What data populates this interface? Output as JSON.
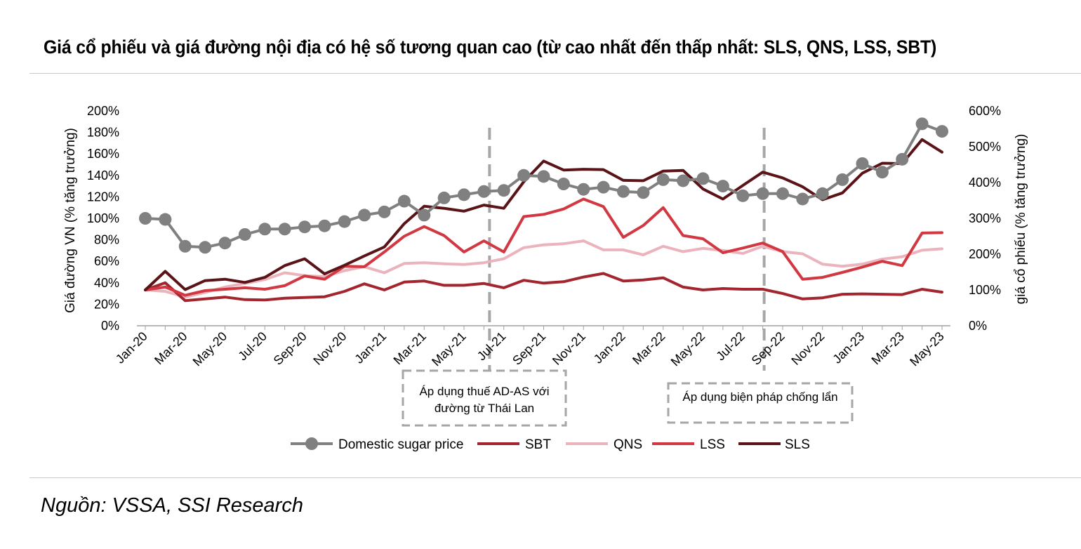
{
  "title": "Giá cổ phiếu và giá đường nội địa có hệ số tương quan cao (từ cao nhất đến thấp nhất: SLS, QNS, LSS, SBT)",
  "source": "Nguồn: VSSA, SSI Research",
  "chart_data": {
    "type": "line",
    "ylabel_left": "Giá đường VN (% tăng trưởng)",
    "ylabel_right": "giá cổ phiếu (% tăng trưởng)",
    "ylim_left": [
      0,
      200
    ],
    "ylim_right": [
      0,
      600
    ],
    "yticks_left": [
      "200%",
      "180%",
      "160%",
      "140%",
      "120%",
      "100%",
      "80%",
      "60%",
      "40%",
      "20%",
      "0%"
    ],
    "yticks_right": [
      "600%",
      "500%",
      "400%",
      "300%",
      "200%",
      "100%",
      "0%"
    ],
    "x": [
      "Jan-20",
      "Feb-20",
      "Mar-20",
      "Apr-20",
      "May-20",
      "Jun-20",
      "Jul-20",
      "Aug-20",
      "Sep-20",
      "Oct-20",
      "Nov-20",
      "Dec-20",
      "Jan-21",
      "Feb-21",
      "Mar-21",
      "Apr-21",
      "May-21",
      "Jun-21",
      "Jul-21",
      "Aug-21",
      "Sep-21",
      "Oct-21",
      "Nov-21",
      "Dec-21",
      "Jan-22",
      "Feb-22",
      "Mar-22",
      "Apr-22",
      "May-22",
      "Jun-22",
      "Jul-22",
      "Aug-22",
      "Sep-22",
      "Oct-22",
      "Nov-22",
      "Dec-22",
      "Jan-23",
      "Feb-23",
      "Mar-23",
      "Apr-23",
      "May-23"
    ],
    "xtick_labels": [
      "Jan-20",
      "Mar-20",
      "May-20",
      "Jul-20",
      "Sep-20",
      "Nov-20",
      "Jan-21",
      "Mar-21",
      "May-21",
      "Jul-21",
      "Sep-21",
      "Nov-21",
      "Jan-22",
      "Mar-22",
      "May-22",
      "Jul-22",
      "Sep-22",
      "Nov-22",
      "Jan-23",
      "Mar-23",
      "May-23"
    ],
    "series": [
      {
        "name": "Domestic sugar price",
        "axis": "left",
        "color": "#808080",
        "marker": true,
        "values": [
          100,
          99,
          74,
          73,
          77,
          85,
          90,
          90,
          92,
          93,
          97,
          103,
          106,
          116,
          103,
          119,
          122,
          125,
          126,
          140,
          139,
          132,
          127,
          129,
          125,
          124,
          136,
          135,
          137,
          130,
          121,
          123,
          123,
          118,
          123,
          136,
          151,
          143,
          155,
          188,
          181
        ]
      },
      {
        "name": "SBT",
        "axis": "right",
        "color": "#a3262f",
        "marker": false,
        "values": [
          100,
          120,
          70,
          75,
          80,
          73,
          72,
          77,
          79,
          81,
          96,
          117,
          100,
          122,
          125,
          113,
          113,
          118,
          106,
          127,
          119,
          123,
          136,
          146,
          125,
          128,
          134,
          108,
          100,
          104,
          102,
          102,
          90,
          75,
          78,
          88,
          89,
          88,
          87,
          102,
          94
        ]
      },
      {
        "name": "QNS",
        "axis": "right",
        "color": "#ebb4bc",
        "marker": false,
        "values": [
          100,
          96,
          80,
          93,
          108,
          118,
          129,
          148,
          140,
          137,
          154,
          165,
          148,
          174,
          176,
          173,
          171,
          176,
          187,
          218,
          226,
          229,
          237,
          212,
          212,
          198,
          222,
          207,
          216,
          210,
          202,
          222,
          207,
          201,
          172,
          166,
          172,
          186,
          193,
          211,
          215
        ]
      },
      {
        "name": "LSS",
        "axis": "right",
        "color": "#d13842",
        "marker": false,
        "values": [
          100,
          108,
          85,
          98,
          102,
          106,
          102,
          112,
          139,
          130,
          166,
          165,
          206,
          250,
          277,
          252,
          206,
          237,
          206,
          305,
          311,
          326,
          354,
          333,
          247,
          280,
          330,
          252,
          243,
          204,
          217,
          231,
          207,
          130,
          135,
          149,
          164,
          180,
          168,
          259,
          260
        ]
      },
      {
        "name": "SLS",
        "axis": "right",
        "color": "#5a1418",
        "marker": false,
        "values": [
          100,
          152,
          101,
          126,
          130,
          121,
          135,
          168,
          187,
          145,
          169,
          195,
          220,
          285,
          334,
          328,
          320,
          337,
          328,
          402,
          460,
          435,
          437,
          436,
          406,
          405,
          432,
          434,
          382,
          354,
          392,
          429,
          413,
          388,
          352,
          371,
          426,
          454,
          453,
          520,
          485
        ]
      }
    ],
    "annotations": [
      {
        "lines": [
          "Áp dụng thuế AD-AS với",
          "đường từ Thái Lan"
        ],
        "at": "Jun-21"
      },
      {
        "lines": [
          "Áp dụng biện pháp chống lẩn"
        ],
        "at": "Aug-22"
      }
    ],
    "legend_position": "bottom-center",
    "grid": false
  }
}
